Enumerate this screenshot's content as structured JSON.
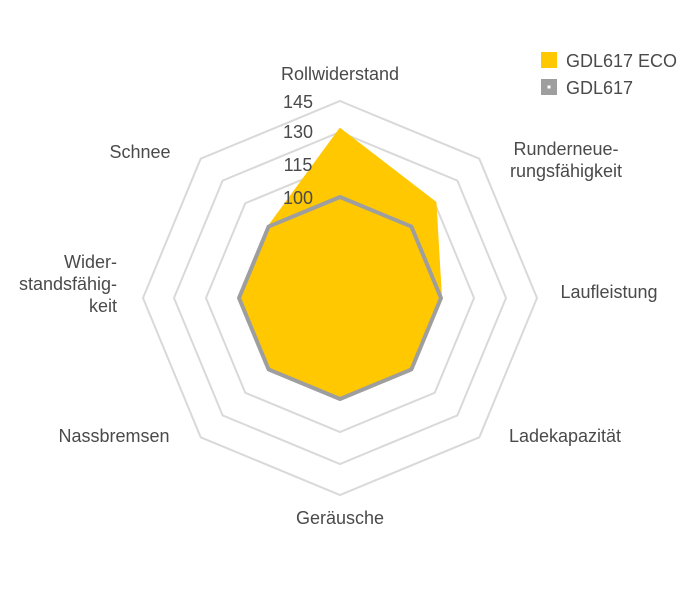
{
  "chart_data": {
    "type": "radar",
    "axes": [
      [
        "Rollwiderstand"
      ],
      [
        "Runderneue-",
        "rungsfähigkeit"
      ],
      [
        "Laufleistung"
      ],
      [
        "Ladekapazität"
      ],
      [
        "Geräusche"
      ],
      [
        "Nassbremsen"
      ],
      [
        "Wider-",
        "standsfähig-",
        "keit"
      ],
      [
        "Schnee"
      ]
    ],
    "tick_labels": [
      "100",
      "115",
      "130",
      "145"
    ],
    "series": [
      {
        "name": "GDL617 ECO",
        "color": "#FFC800",
        "values": [
          130,
          115,
          100,
          100,
          100,
          100,
          100,
          100
        ]
      },
      {
        "name": "GDL617",
        "color": "#9E9E9E",
        "values": [
          100,
          100,
          100,
          100,
          100,
          100,
          100,
          100
        ]
      }
    ],
    "grid": true,
    "legend_position": "top-right"
  }
}
